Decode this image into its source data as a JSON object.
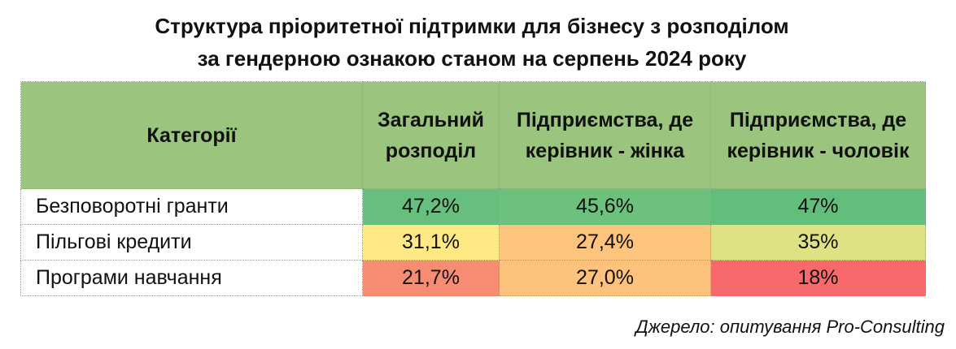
{
  "title": [
    "Структура пріоритетної підтримки для бізнесу з розподілом",
    "за гендерною ознакою станом на серпень 2024 року"
  ],
  "table": {
    "header": [
      "Категорії",
      "Загальний розподіл",
      "Підприємства, де керівник - жінка",
      "Підприємства, де керівник - чоловік"
    ],
    "header_color": "#9bc57e",
    "rows": [
      [
        "Безповоротні гранти",
        "47,2%",
        "45,6%",
        "47%"
      ],
      [
        "Пільгові кредити",
        "31,1%",
        "27,4%",
        "35%"
      ],
      [
        "Програми навчання",
        "21,7%",
        "27,0%",
        "18%"
      ]
    ],
    "cell_colors": [
      [
        "#ffffff",
        "#66bf7c",
        "#6cc17c",
        "#63be7b"
      ],
      [
        "#ffffff",
        "#ffe984",
        "#fdc47d",
        "#dfe283"
      ],
      [
        "#ffffff",
        "#f88c72",
        "#fdc27c",
        "#f8696b"
      ]
    ]
  },
  "source": "Джерело: опитування Pro-Consulting"
}
